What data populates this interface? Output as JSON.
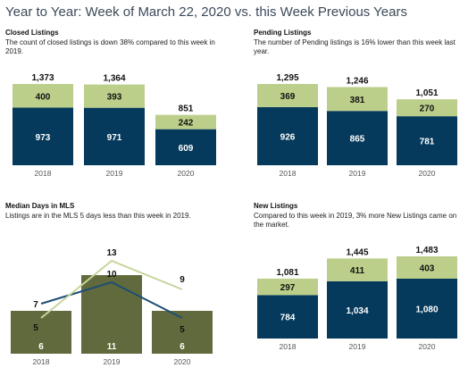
{
  "page_title": "Year to Year: Week of March 22, 2020 vs. this Week Previous Years",
  "colors": {
    "dark_blue": "#063a5c",
    "light_green": "#bccf8a",
    "olive": "#616a3c",
    "line_blue": "#1e4e74",
    "line_green": "#c5d59c",
    "axis_text": "#555555"
  },
  "panels": {
    "closed": {
      "title": "Closed Listings",
      "subtitle": "The count of closed listings is down 38% compared to this week in 2019."
    },
    "pending": {
      "title": "Pending Listings",
      "subtitle": "The number of Pending listings is 16% lower than this week last year."
    },
    "dom": {
      "title": "Median Days in MLS",
      "subtitle": "Listings are in the MLS 5 days less than this week in 2019."
    },
    "new": {
      "title": "New Listings",
      "subtitle": "Compared to this week in 2019, 3% more New Listings came on the market."
    }
  },
  "chart_data": [
    {
      "id": "closed",
      "type": "bar",
      "stacked": true,
      "categories": [
        "2018",
        "2019",
        "2020"
      ],
      "series": [
        {
          "values": [
            973,
            971,
            609
          ],
          "labels": [
            "973",
            "971",
            "609"
          ]
        },
        {
          "values": [
            400,
            393,
            242
          ],
          "labels": [
            "400",
            "393",
            "242"
          ]
        }
      ],
      "totals": [
        "1,373",
        "1,364",
        "851"
      ]
    },
    {
      "id": "pending",
      "type": "bar",
      "stacked": true,
      "categories": [
        "2018",
        "2019",
        "2020"
      ],
      "series": [
        {
          "values": [
            926,
            865,
            781
          ],
          "labels": [
            "926",
            "865",
            "781"
          ]
        },
        {
          "values": [
            369,
            381,
            270
          ],
          "labels": [
            "369",
            "381",
            "270"
          ]
        }
      ],
      "totals": [
        "1,295",
        "1,246",
        "1,051"
      ]
    },
    {
      "id": "dom",
      "type": "bar",
      "categories": [
        "2018",
        "2019",
        "2020"
      ],
      "bars": {
        "values": [
          6,
          11,
          6
        ],
        "labels": [
          "6",
          "11",
          "6"
        ]
      },
      "lines": [
        {
          "values": [
            7,
            10,
            5
          ],
          "labels": [
            "7",
            "10",
            "5"
          ]
        },
        {
          "values": [
            5,
            13,
            9
          ],
          "labels": [
            "5",
            "13",
            "9"
          ]
        }
      ]
    },
    {
      "id": "new",
      "type": "bar",
      "stacked": true,
      "categories": [
        "2018",
        "2019",
        "2020"
      ],
      "series": [
        {
          "values": [
            784,
            1034,
            1080
          ],
          "labels": [
            "784",
            "1,034",
            "1,080"
          ]
        },
        {
          "values": [
            297,
            411,
            403
          ],
          "labels": [
            "297",
            "411",
            "403"
          ]
        }
      ],
      "totals": [
        "1,081",
        "1,445",
        "1,483"
      ]
    }
  ]
}
